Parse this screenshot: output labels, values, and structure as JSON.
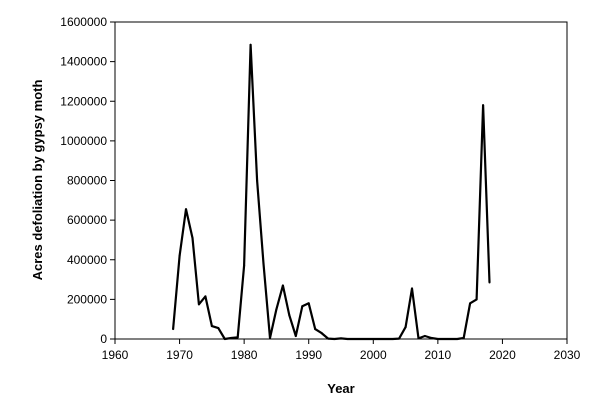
{
  "chart_data": {
    "type": "line",
    "title": "",
    "xlabel": "Year",
    "ylabel": "Acres defoliation by gypsy moth",
    "xlim": [
      1960,
      2030
    ],
    "ylim": [
      0,
      1600000
    ],
    "x_ticks": [
      1960,
      1970,
      1980,
      1990,
      2000,
      2010,
      2020,
      2030
    ],
    "y_ticks": [
      0,
      200000,
      400000,
      600000,
      800000,
      1000000,
      1200000,
      1400000,
      1600000
    ],
    "grid": false,
    "legend": "none",
    "series_color": "#000000",
    "series": [
      {
        "x": [
          1969,
          1970,
          1971,
          1972,
          1973,
          1974,
          1975,
          1976,
          1977,
          1978,
          1979,
          1980,
          1981,
          1982,
          1983,
          1984,
          1985,
          1986,
          1987,
          1988,
          1989,
          1990,
          1991,
          1992,
          1993,
          1994,
          1995,
          1996,
          1997,
          1998,
          1999,
          2000,
          2001,
          2002,
          2003,
          2004,
          2005,
          2006,
          2007,
          2008,
          2009,
          2010,
          2011,
          2012,
          2013,
          2014,
          2015,
          2016,
          2017,
          2018
        ],
        "y": [
          50000,
          420000,
          655000,
          510000,
          175000,
          215000,
          65000,
          55000,
          0,
          5000,
          8000,
          370000,
          1485000,
          800000,
          380000,
          5000,
          150000,
          270000,
          120000,
          15000,
          165000,
          180000,
          50000,
          30000,
          2000,
          0,
          3000,
          0,
          0,
          0,
          0,
          0,
          0,
          0,
          0,
          2000,
          60000,
          255000,
          3000,
          15000,
          5000,
          0,
          0,
          0,
          0,
          5000,
          180000,
          200000,
          1180000,
          285000
        ]
      }
    ]
  }
}
